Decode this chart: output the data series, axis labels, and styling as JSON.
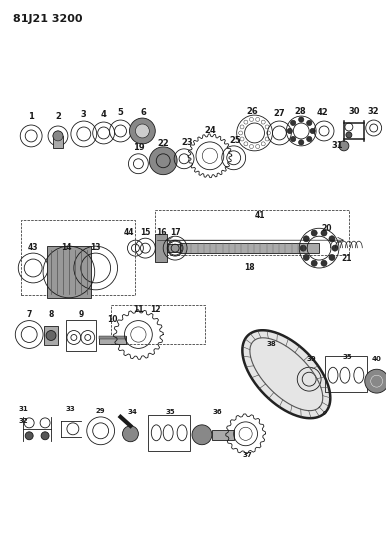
{
  "title": "81J21 3200",
  "bg_color": "#ffffff",
  "line_color": "#1a1a1a",
  "fig_width": 3.87,
  "fig_height": 5.33,
  "dpi": 100
}
